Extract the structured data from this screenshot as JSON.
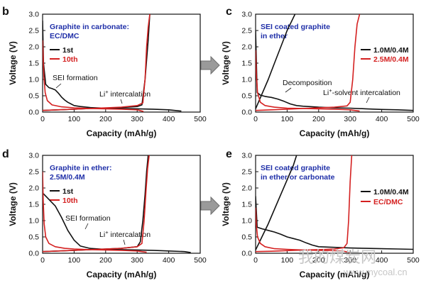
{
  "colors": {
    "series_1": "#111111",
    "series_2": "#d42020",
    "note": "#1f2fa8",
    "arrow": "#8a8a8a",
    "watermark": "#c7c7c7"
  },
  "axes": {
    "xlabel": "Capacity (mAh/g)",
    "ylabel": "Voltage (V)",
    "xticks": [
      0,
      100,
      200,
      300,
      400,
      500
    ],
    "yticks": [
      "0.0",
      "0.5",
      "1.0",
      "1.5",
      "2.0",
      "2.5",
      "3.0"
    ]
  },
  "transition_arrows": [
    "right-arrow-icon",
    "right-arrow-icon"
  ],
  "watermark": {
    "text": "我的煤炭网",
    "url": "www.mycoal.cn"
  },
  "chart_data": [
    {
      "panel": "b",
      "type": "line",
      "xlim": [
        0,
        500
      ],
      "ylim": [
        0,
        3.0
      ],
      "note": [
        "Graphite in carbonate:",
        "EC/DMC"
      ],
      "annotations": [
        "SEI formation",
        "Li",
        "+",
        " intercalation"
      ],
      "series": [
        {
          "name": "1st",
          "discharge": {
            "x": [
              0,
              3,
              10,
              20,
              30,
              40,
              50,
              60,
              70,
              80,
              90,
              100,
              120,
              150,
              200,
              250,
              300,
              350,
              400,
              440
            ],
            "y": [
              2.8,
              1.5,
              0.85,
              0.75,
              0.72,
              0.68,
              0.58,
              0.46,
              0.37,
              0.3,
              0.25,
              0.2,
              0.17,
              0.14,
              0.12,
              0.11,
              0.1,
              0.09,
              0.07,
              0.03
            ]
          },
          "charge": {
            "x": [
              0,
              50,
              100,
              150,
              200,
              250,
              300,
              315,
              325,
              335,
              340
            ],
            "y": [
              0.05,
              0.07,
              0.09,
              0.11,
              0.12,
              0.14,
              0.17,
              0.22,
              1.0,
              2.2,
              3.0
            ]
          }
        },
        {
          "name": "10th",
          "discharge": {
            "x": [
              0,
              2,
              4,
              8,
              15,
              30,
              60,
              100,
              150,
              200,
              250,
              300,
              320
            ],
            "y": [
              2.2,
              1.6,
              1.1,
              0.6,
              0.35,
              0.22,
              0.16,
              0.13,
              0.11,
              0.1,
              0.09,
              0.07,
              0.02
            ]
          },
          "charge": {
            "x": [
              0,
              50,
              100,
              150,
              200,
              250,
              300,
              318,
              325,
              330,
              335,
              340
            ],
            "y": [
              0.05,
              0.07,
              0.09,
              0.11,
              0.13,
              0.15,
              0.2,
              0.28,
              1.0,
              2.0,
              2.6,
              3.0
            ]
          }
        }
      ]
    },
    {
      "panel": "c",
      "type": "line",
      "xlim": [
        0,
        500
      ],
      "ylim": [
        0,
        3.0
      ],
      "note": [
        "SEI coated graphite",
        "in ether"
      ],
      "annotations": [
        "Decomposition",
        "Li",
        "+",
        "-solvent intercalation"
      ],
      "series": [
        {
          "name": "1.0M/0.4M",
          "discharge": {
            "x": [
              0,
              5,
              15,
              30,
              50,
              70,
              90,
              110,
              130,
              150,
              200,
              250,
              300,
              350,
              400,
              450,
              500
            ],
            "y": [
              2.5,
              0.6,
              0.52,
              0.48,
              0.45,
              0.4,
              0.33,
              0.25,
              0.2,
              0.18,
              0.15,
              0.13,
              0.12,
              0.1,
              0.08,
              0.07,
              0.05
            ]
          },
          "charge": {
            "x": [
              0,
              20,
              40,
              60,
              80,
              100,
              115,
              125
            ],
            "y": [
              0.1,
              0.55,
              1.0,
              1.5,
              2.0,
              2.5,
              2.8,
              3.0
            ]
          }
        },
        {
          "name": "2.5M/0.4M",
          "discharge": {
            "x": [
              0,
              2,
              6,
              15,
              30,
              60,
              100,
              150,
              200,
              250,
              300,
              330
            ],
            "y": [
              1.9,
              1.2,
              0.6,
              0.3,
              0.2,
              0.15,
              0.12,
              0.11,
              0.1,
              0.09,
              0.07,
              0.03
            ]
          },
          "charge": {
            "x": [
              0,
              50,
              100,
              150,
              200,
              250,
              290,
              300,
              308,
              315,
              322,
              330
            ],
            "y": [
              0.05,
              0.07,
              0.09,
              0.11,
              0.13,
              0.15,
              0.19,
              0.3,
              1.0,
              2.0,
              2.7,
              3.0
            ]
          }
        }
      ]
    },
    {
      "panel": "d",
      "type": "line",
      "xlim": [
        0,
        500
      ],
      "ylim": [
        0,
        3.0
      ],
      "note": [
        "Graphite in ether:",
        "2.5M/0.4M"
      ],
      "annotations": [
        "SEI formation",
        "Li",
        "+",
        " intercalation"
      ],
      "series": [
        {
          "name": "1st",
          "discharge": {
            "x": [
              0,
              5,
              15,
              25,
              40,
              60,
              80,
              100,
              120,
              150,
              200,
              250,
              300,
              350,
              400,
              450,
              470
            ],
            "y": [
              1.85,
              1.8,
              1.7,
              1.6,
              1.45,
              1.1,
              0.7,
              0.4,
              0.22,
              0.15,
              0.12,
              0.11,
              0.1,
              0.09,
              0.07,
              0.05,
              0.02
            ]
          },
          "charge": {
            "x": [
              0,
              50,
              100,
              150,
              200,
              250,
              300,
              310,
              318,
              325,
              330,
              335
            ],
            "y": [
              0.05,
              0.07,
              0.09,
              0.11,
              0.13,
              0.15,
              0.2,
              0.35,
              1.0,
              1.8,
              2.5,
              3.0
            ]
          }
        },
        {
          "name": "10th",
          "discharge": {
            "x": [
              0,
              2,
              5,
              10,
              20,
              40,
              70,
              100,
              150,
              200,
              250,
              300,
              330
            ],
            "y": [
              2.5,
              1.6,
              0.9,
              0.5,
              0.3,
              0.2,
              0.15,
              0.13,
              0.11,
              0.1,
              0.09,
              0.07,
              0.03
            ]
          },
          "charge": {
            "x": [
              0,
              50,
              100,
              150,
              200,
              250,
              300,
              315,
              322,
              328,
              333,
              338
            ],
            "y": [
              0.05,
              0.07,
              0.09,
              0.11,
              0.13,
              0.15,
              0.2,
              0.3,
              1.0,
              1.9,
              2.6,
              3.0
            ]
          }
        }
      ]
    },
    {
      "panel": "e",
      "type": "line",
      "xlim": [
        0,
        500
      ],
      "ylim": [
        0,
        3.0
      ],
      "note": [
        "SEI coated graphite",
        "in ether or carbonate"
      ],
      "annotations": [],
      "series": [
        {
          "name": "1.0M/0.4M",
          "discharge": {
            "x": [
              0,
              5,
              20,
              40,
              60,
              80,
              100,
              120,
              140,
              160,
              180,
              200,
              250,
              300,
              350,
              400,
              450,
              500
            ],
            "y": [
              1.75,
              0.8,
              0.75,
              0.7,
              0.65,
              0.58,
              0.5,
              0.45,
              0.4,
              0.32,
              0.25,
              0.2,
              0.18,
              0.16,
              0.15,
              0.14,
              0.13,
              0.12
            ]
          },
          "charge": {
            "x": [
              0,
              20,
              40,
              60,
              80,
              100,
              120,
              130
            ],
            "y": [
              0.1,
              0.5,
              0.9,
              1.35,
              1.8,
              2.25,
              2.7,
              3.0
            ]
          }
        },
        {
          "name": "EC/DMC",
          "discharge": {
            "x": [
              0,
              2,
              6,
              15,
              30,
              60,
              100,
              150,
              200,
              250,
              280,
              300
            ],
            "y": [
              1.4,
              0.9,
              0.5,
              0.3,
              0.2,
              0.14,
              0.12,
              0.1,
              0.09,
              0.08,
              0.06,
              0.02
            ]
          },
          "charge": {
            "x": [
              0,
              50,
              100,
              150,
              200,
              250,
              280,
              290,
              295,
              300,
              305
            ],
            "y": [
              0.05,
              0.06,
              0.08,
              0.1,
              0.11,
              0.13,
              0.17,
              0.3,
              1.0,
              2.2,
              3.0
            ]
          }
        }
      ]
    }
  ]
}
